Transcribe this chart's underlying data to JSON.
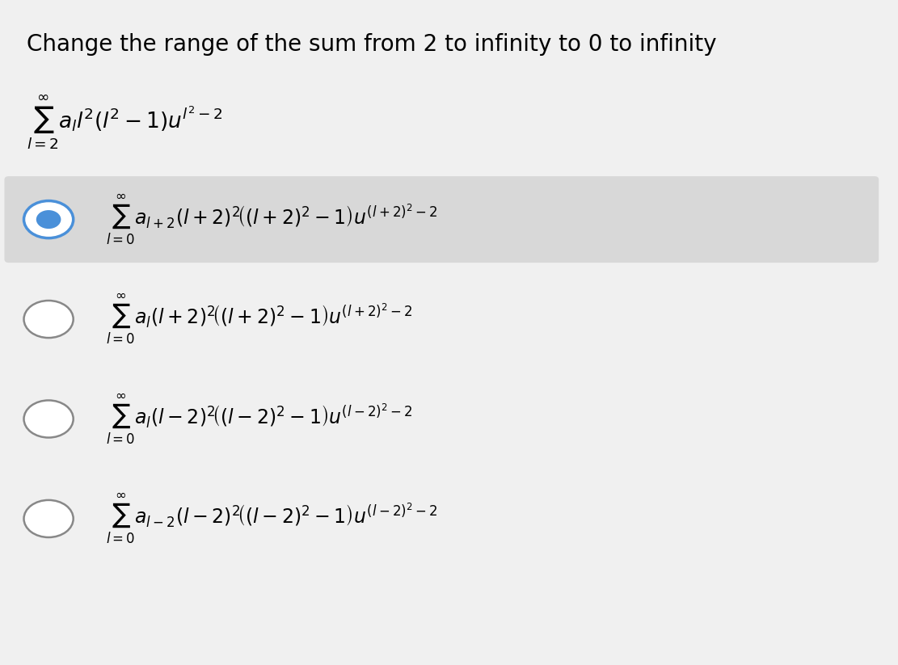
{
  "title": "Change the range of the sum from 2 to infinity to 0 to infinity",
  "original_expr": "$\\sum_{l=2}^{\\infty} a_l l^2 \\left(l^2 - 1\\right) u^{l^2-2}$",
  "options": [
    {
      "expr": "$\\sum_{l=0}^{\\infty} a_{l+2}\\left(l+2\\right)^2\\!\\left(\\left(l+2\\right)^2-1\\right)u^{(l+2)^2-2}$",
      "selected": true
    },
    {
      "expr": "$\\sum_{l=0}^{\\infty} a_l\\left(l+2\\right)^2\\!\\left(\\left(l+2\\right)^2-1\\right)u^{(l+2)^2-2}$",
      "selected": false
    },
    {
      "expr": "$\\sum_{l=0}^{\\infty} a_l\\left(l-2\\right)^2\\!\\left(\\left(l-2\\right)^2-1\\right)u^{(l-2)^2-2}$",
      "selected": false
    },
    {
      "expr": "$\\sum_{l=0}^{\\infty} a_{l-2}\\left(l-2\\right)^2\\!\\left(\\left(l-2\\right)^2-1\\right)u^{(l-2)^2-2}$",
      "selected": false
    }
  ],
  "bg_color": "#f0f0f0",
  "selected_bg": "#d8d8d8",
  "circle_color": "#4a90d9",
  "title_fontsize": 20,
  "expr_fontsize": 18,
  "option_fontsize": 17
}
